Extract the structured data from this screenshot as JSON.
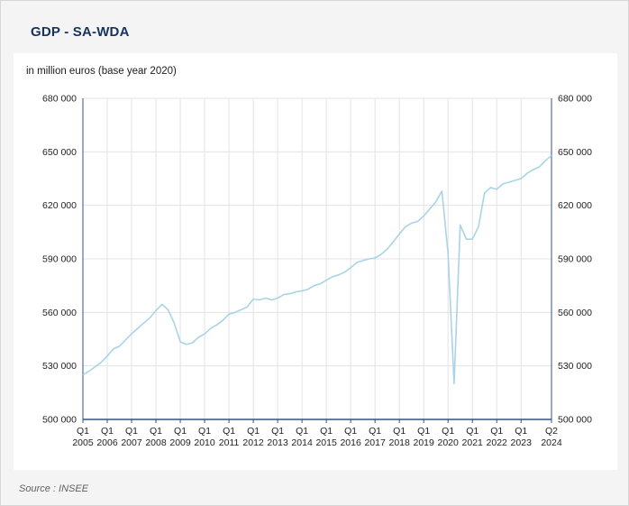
{
  "page": {
    "title": "GDP - SA-WDA",
    "subtitle": "in million euros (base year 2020)",
    "source": "Source : INSEE"
  },
  "colors": {
    "title": "#16335e",
    "axis": "#31518f",
    "grid": "#e3e3e3",
    "line": "#a9d4e6",
    "tick_text": "#222222"
  },
  "chart_data": {
    "type": "line",
    "title": "GDP - SA-WDA",
    "ylabel": "in million euros (base year 2020)",
    "legend": false,
    "grid": true,
    "ylim": [
      500000,
      680000
    ],
    "y_ticks": [
      500000,
      530000,
      560000,
      590000,
      620000,
      650000,
      680000
    ],
    "y_tick_labels": [
      "500 000",
      "530 000",
      "560 000",
      "590 000",
      "620 000",
      "650 000",
      "680 000"
    ],
    "x_ticks": [
      {
        "quarter": "Q1",
        "year": "2005"
      },
      {
        "quarter": "Q1",
        "year": "2006"
      },
      {
        "quarter": "Q1",
        "year": "2007"
      },
      {
        "quarter": "Q1",
        "year": "2008"
      },
      {
        "quarter": "Q1",
        "year": "2009"
      },
      {
        "quarter": "Q1",
        "year": "2010"
      },
      {
        "quarter": "Q1",
        "year": "2011"
      },
      {
        "quarter": "Q1",
        "year": "2012"
      },
      {
        "quarter": "Q1",
        "year": "2013"
      },
      {
        "quarter": "Q1",
        "year": "2014"
      },
      {
        "quarter": "Q1",
        "year": "2015"
      },
      {
        "quarter": "Q1",
        "year": "2016"
      },
      {
        "quarter": "Q1",
        "year": "2017"
      },
      {
        "quarter": "Q1",
        "year": "2018"
      },
      {
        "quarter": "Q1",
        "year": "2019"
      },
      {
        "quarter": "Q1",
        "year": "2020"
      },
      {
        "quarter": "Q1",
        "year": "2021"
      },
      {
        "quarter": "Q1",
        "year": "2022"
      },
      {
        "quarter": "Q1",
        "year": "2023"
      },
      {
        "quarter": "Q2",
        "year": "2024"
      }
    ],
    "x_start": "2005-Q1",
    "x_end": "2024-Q2",
    "series": [
      {
        "name": "GDP (SA-WDA, million euros, base year 2020)",
        "values": [
          525000,
          527000,
          529500,
          532000,
          535500,
          539500,
          541000,
          544500,
          548000,
          551000,
          554000,
          557000,
          561000,
          564500,
          561500,
          554000,
          543500,
          542000,
          543000,
          546000,
          548000,
          551000,
          553000,
          555500,
          559000,
          560000,
          561500,
          563000,
          567500,
          567000,
          568000,
          567000,
          568000,
          570000,
          570500,
          571500,
          572000,
          573000,
          575000,
          576000,
          578000,
          580000,
          581000,
          582500,
          585000,
          588000,
          589000,
          590000,
          590500,
          592500,
          595500,
          599500,
          604000,
          608000,
          610000,
          611000,
          614000,
          618000,
          622000,
          628000,
          593000,
          520000,
          609000,
          601000,
          601000,
          608000,
          627000,
          630000,
          629000,
          632000,
          633000,
          634000,
          635000,
          638000,
          640000,
          641500,
          645000,
          648000
        ]
      }
    ]
  }
}
